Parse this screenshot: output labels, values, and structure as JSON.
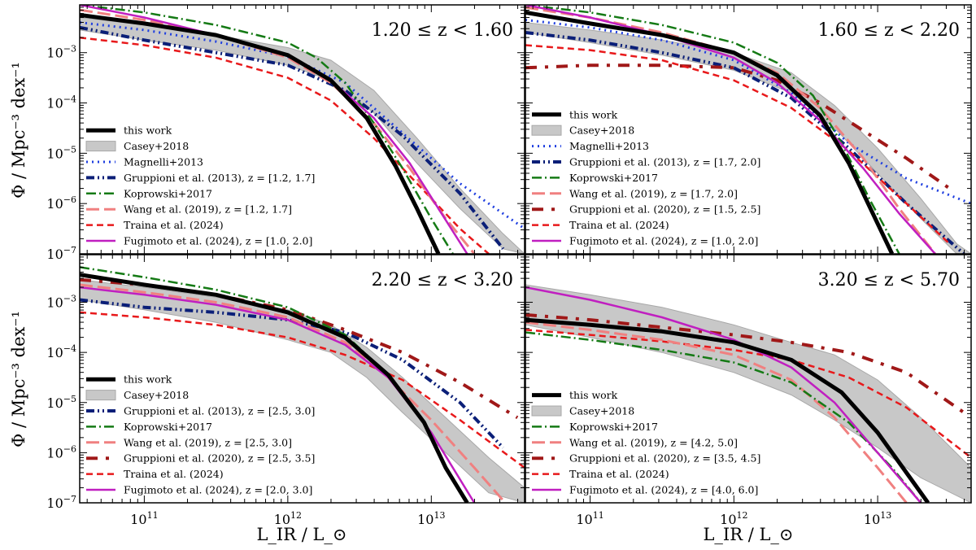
{
  "figure": {
    "ylabel": "Φ / Mpc⁻³ dex⁻¹",
    "xlabel": "L_IR / L_⊙",
    "xtick_labels": [
      "10^11",
      "10^12",
      "10^13"
    ],
    "ytick_labels": [
      "10^-7",
      "10^-6",
      "10^-5",
      "10^-4",
      "10^-3"
    ]
  },
  "styles": {
    "this work": {
      "color": "#000000",
      "dash": "",
      "width": 5
    },
    "Casey+2018": {
      "color": "#a8a8a8",
      "dash": "",
      "width": 2
    },
    "Magnelli+2013": {
      "color": "#1f3fe0",
      "dash": "2 5",
      "width": 3
    },
    "Gruppioni2013": {
      "color": "#0b1f78",
      "dash": "10 4 2 4 2 4",
      "width": 4
    },
    "Koprowski+2017": {
      "color": "#157a15",
      "dash": "12 4 2 4",
      "width": 2.5
    },
    "Wang2019": {
      "color": "#f08080",
      "dash": "16 6",
      "width": 3
    },
    "Gruppioni2020": {
      "color": "#a01818",
      "dash": "14 10 4 10",
      "width": 4
    },
    "Traina2024": {
      "color": "#e8191b",
      "dash": "8 5",
      "width": 2.5
    },
    "Fugimoto2024": {
      "color": "#c01fc0",
      "dash": "",
      "width": 2.5
    }
  },
  "chart_data": [
    {
      "type": "line",
      "title": "1.20 ≤ z < 1.60",
      "xlim_log": [
        10.55,
        13.65
      ],
      "ylim_log": [
        -7,
        -2.05
      ],
      "xscale": "log",
      "yscale": "log",
      "legend_position": "lower-left",
      "legend": [
        {
          "key": "this work",
          "label": "this work"
        },
        {
          "key": "Casey+2018",
          "label": "Casey+2018",
          "box": true
        },
        {
          "key": "Magnelli+2013",
          "label": "Magnelli+2013"
        },
        {
          "key": "Gruppioni2013",
          "label": "Gruppioni et al. (2013), z = [1.2, 1.7]"
        },
        {
          "key": "Koprowski+2017",
          "label": "Koprowski+2017"
        },
        {
          "key": "Wang2019",
          "label": "Wang et al. (2019), z = [1.2, 1.7]"
        },
        {
          "key": "Traina2024",
          "label": "Traina et al. (2024)"
        },
        {
          "key": "Fugimoto2024",
          "label": "Fugimoto et al. (2024), z = [1.0, 2.0]"
        }
      ],
      "casey_band": {
        "x": [
          10.55,
          11.0,
          11.5,
          12.0,
          12.3,
          12.6,
          12.9,
          13.2,
          13.5,
          13.65
        ],
        "upper": [
          -2.3,
          -2.45,
          -2.65,
          -2.9,
          -3.15,
          -3.75,
          -4.7,
          -5.7,
          -6.6,
          -7.0
        ],
        "lower": [
          -2.55,
          -2.75,
          -2.95,
          -3.25,
          -3.55,
          -4.2,
          -5.2,
          -6.1,
          -6.9,
          -7.0
        ]
      },
      "series": [
        {
          "key": "Magnelli+2013",
          "x": [
            10.55,
            11.0,
            11.5,
            12.0,
            12.4,
            12.8,
            13.2,
            13.65
          ],
          "y": [
            -2.4,
            -2.55,
            -2.78,
            -3.08,
            -3.6,
            -4.6,
            -5.6,
            -6.5
          ]
        },
        {
          "key": "Gruppioni2013",
          "x": [
            10.55,
            11.0,
            11.5,
            12.0,
            12.4,
            12.8,
            13.2,
            13.5
          ],
          "y": [
            -2.5,
            -2.75,
            -3.0,
            -3.25,
            -3.75,
            -4.65,
            -5.8,
            -6.9
          ]
        },
        {
          "key": "Traina2024",
          "x": [
            10.55,
            11.0,
            11.5,
            12.0,
            12.3,
            12.6,
            12.9,
            13.2,
            13.4
          ],
          "y": [
            -2.7,
            -2.85,
            -3.1,
            -3.5,
            -3.95,
            -4.7,
            -5.6,
            -6.5,
            -7.0
          ]
        },
        {
          "key": "Wang2019",
          "x": [
            10.55,
            11.0,
            11.5,
            12.0,
            12.3,
            12.6,
            12.85,
            13.1,
            13.3
          ],
          "y": [
            -2.15,
            -2.35,
            -2.65,
            -3.1,
            -3.6,
            -4.4,
            -5.3,
            -6.3,
            -7.0
          ]
        },
        {
          "key": "Koprowski+2017",
          "x": [
            10.55,
            11.0,
            11.5,
            12.0,
            12.2,
            12.4,
            12.6,
            12.8,
            13.0,
            13.15
          ],
          "y": [
            -2.05,
            -2.2,
            -2.45,
            -2.8,
            -3.1,
            -3.6,
            -4.4,
            -5.3,
            -6.3,
            -7.0
          ]
        },
        {
          "key": "Fugimoto2024",
          "x": [
            10.55,
            11.0,
            11.5,
            12.0,
            12.3,
            12.6,
            12.85,
            13.05,
            13.25
          ],
          "y": [
            -2.05,
            -2.3,
            -2.65,
            -3.05,
            -3.55,
            -4.3,
            -5.2,
            -6.1,
            -7.0
          ]
        },
        {
          "key": "this work",
          "x": [
            10.55,
            11.0,
            11.5,
            12.0,
            12.3,
            12.55,
            12.75,
            12.9,
            13.05
          ],
          "y": [
            -2.25,
            -2.42,
            -2.65,
            -3.05,
            -3.55,
            -4.3,
            -5.25,
            -6.1,
            -7.0
          ]
        }
      ]
    },
    {
      "type": "line",
      "title": "1.60 ≤ z < 2.20",
      "xlim_log": [
        10.55,
        13.65
      ],
      "ylim_log": [
        -7,
        -2.05
      ],
      "xscale": "log",
      "yscale": "log",
      "legend_position": "lower-left",
      "legend": [
        {
          "key": "this work",
          "label": "this work"
        },
        {
          "key": "Casey+2018",
          "label": "Casey+2018",
          "box": true
        },
        {
          "key": "Magnelli+2013",
          "label": "Magnelli+2013"
        },
        {
          "key": "Gruppioni2013",
          "label": "Gruppioni et al. (2013), z = [1.7, 2.0]"
        },
        {
          "key": "Koprowski+2017",
          "label": "Koprowski+2017"
        },
        {
          "key": "Wang2019",
          "label": "Wang et al. (2019), z = [1.7, 2.0]"
        },
        {
          "key": "Gruppioni2020",
          "label": "Gruppioni et al. (2020), z = [1.5, 2.5]"
        },
        {
          "key": "Traina2024",
          "label": "Traina et al. (2024)"
        },
        {
          "key": "Fugimoto2024",
          "label": "Fugimoto et al. (2024), z = [1.0, 2.0]"
        }
      ],
      "casey_band": {
        "x": [
          10.55,
          11.0,
          11.5,
          12.0,
          12.4,
          12.7,
          13.0,
          13.3,
          13.55,
          13.65
        ],
        "upper": [
          -2.4,
          -2.55,
          -2.75,
          -3.0,
          -3.4,
          -4.05,
          -4.9,
          -5.9,
          -6.8,
          -7.0
        ],
        "lower": [
          -2.6,
          -2.8,
          -3.05,
          -3.35,
          -3.8,
          -4.5,
          -5.4,
          -6.3,
          -7.0,
          -7.0
        ]
      },
      "series": [
        {
          "key": "Magnelli+2013",
          "x": [
            10.55,
            11.0,
            11.5,
            12.0,
            12.4,
            12.8,
            13.2,
            13.65
          ],
          "y": [
            -2.35,
            -2.5,
            -2.75,
            -3.15,
            -3.8,
            -4.8,
            -5.5,
            -6.0
          ]
        },
        {
          "key": "Gruppioni2013",
          "x": [
            10.55,
            11.0,
            11.5,
            12.0,
            12.4,
            12.8,
            13.2,
            13.6
          ],
          "y": [
            -2.6,
            -2.75,
            -3.0,
            -3.3,
            -3.9,
            -4.9,
            -6.0,
            -7.0
          ]
        },
        {
          "key": "Gruppioni2020",
          "x": [
            10.55,
            11.0,
            11.5,
            12.0,
            12.3,
            12.6,
            12.9,
            13.2,
            13.5
          ],
          "y": [
            -3.3,
            -3.25,
            -3.25,
            -3.3,
            -3.55,
            -4.0,
            -4.55,
            -5.1,
            -5.7
          ]
        },
        {
          "key": "Traina2024",
          "x": [
            10.55,
            11.0,
            11.5,
            12.0,
            12.4,
            12.8,
            13.2,
            13.5
          ],
          "y": [
            -2.85,
            -2.95,
            -3.15,
            -3.55,
            -4.1,
            -4.95,
            -6.0,
            -6.8
          ]
        },
        {
          "key": "Wang2019",
          "x": [
            10.55,
            11.0,
            11.5,
            12.0,
            12.3,
            12.6,
            12.9,
            13.15,
            13.4
          ],
          "y": [
            -2.1,
            -2.3,
            -2.6,
            -3.0,
            -3.4,
            -4.1,
            -5.1,
            -6.1,
            -7.0
          ]
        },
        {
          "key": "Koprowski+2017",
          "x": [
            10.55,
            11.0,
            11.5,
            12.0,
            12.3,
            12.55,
            12.75,
            12.95,
            13.15
          ],
          "y": [
            -2.05,
            -2.2,
            -2.45,
            -2.8,
            -3.2,
            -3.85,
            -4.8,
            -5.95,
            -7.0
          ]
        },
        {
          "key": "Fugimoto2024",
          "x": [
            10.55,
            11.0,
            11.5,
            12.0,
            12.3,
            12.6,
            12.9,
            13.15,
            13.4
          ],
          "y": [
            -2.05,
            -2.3,
            -2.65,
            -3.1,
            -3.6,
            -4.35,
            -5.3,
            -6.2,
            -7.0
          ]
        },
        {
          "key": "this work",
          "x": [
            10.55,
            11.0,
            11.5,
            12.0,
            12.3,
            12.6,
            12.8,
            12.95,
            13.1
          ],
          "y": [
            -2.2,
            -2.42,
            -2.65,
            -3.0,
            -3.45,
            -4.25,
            -5.2,
            -6.1,
            -7.0
          ]
        }
      ]
    },
    {
      "type": "line",
      "title": "2.20 ≤ z < 3.20",
      "xlim_log": [
        10.55,
        13.65
      ],
      "ylim_log": [
        -7,
        -2.05
      ],
      "xscale": "log",
      "yscale": "log",
      "legend_position": "lower-left",
      "legend": [
        {
          "key": "this work",
          "label": "this work"
        },
        {
          "key": "Casey+2018",
          "label": "Casey+2018",
          "box": true
        },
        {
          "key": "Gruppioni2013",
          "label": "Gruppioni et al. (2013), z = [2.5, 3.0]"
        },
        {
          "key": "Koprowski+2017",
          "label": "Koprowski+2017"
        },
        {
          "key": "Wang2019",
          "label": "Wang et al. (2019), z = [2.5, 3.0]"
        },
        {
          "key": "Gruppioni2020",
          "label": "Gruppioni et al. (2020), z = [2.5, 3.5]"
        },
        {
          "key": "Traina2024",
          "label": "Traina et al. (2024)"
        },
        {
          "key": "Fugimoto2024",
          "label": "Fugimoto et al. (2024), z = [2.0, 3.0]"
        }
      ],
      "casey_band": {
        "x": [
          10.55,
          11.0,
          11.5,
          12.0,
          12.3,
          12.55,
          12.8,
          13.1,
          13.4,
          13.65
        ],
        "upper": [
          -2.55,
          -2.7,
          -2.9,
          -3.15,
          -3.45,
          -3.9,
          -4.5,
          -5.3,
          -6.1,
          -6.7
        ],
        "lower": [
          -2.95,
          -3.15,
          -3.4,
          -3.75,
          -4.0,
          -4.5,
          -5.2,
          -6.0,
          -6.8,
          -7.0
        ]
      },
      "series": [
        {
          "key": "Gruppioni2013",
          "x": [
            10.55,
            11.0,
            11.5,
            12.0,
            12.4,
            12.8,
            13.2,
            13.5
          ],
          "y": [
            -2.95,
            -3.1,
            -3.2,
            -3.35,
            -3.6,
            -4.15,
            -5.0,
            -5.9
          ]
        },
        {
          "key": "Gruppioni2020",
          "x": [
            10.55,
            11.0,
            11.5,
            12.0,
            12.4,
            12.8,
            13.2,
            13.6
          ],
          "y": [
            -2.55,
            -2.65,
            -2.85,
            -3.15,
            -3.55,
            -4.0,
            -4.6,
            -5.3
          ]
        },
        {
          "key": "Traina2024",
          "x": [
            10.55,
            11.0,
            11.5,
            12.0,
            12.4,
            12.8,
            13.2,
            13.65
          ],
          "y": [
            -3.2,
            -3.3,
            -3.45,
            -3.7,
            -4.05,
            -4.55,
            -5.35,
            -6.3
          ]
        },
        {
          "key": "Wang2019",
          "x": [
            10.55,
            11.0,
            11.5,
            12.0,
            12.4,
            12.7,
            13.0,
            13.3,
            13.5
          ],
          "y": [
            -2.65,
            -2.8,
            -3.0,
            -3.3,
            -3.8,
            -4.5,
            -5.35,
            -6.3,
            -6.95
          ]
        },
        {
          "key": "Koprowski+2017",
          "x": [
            10.55,
            11.0,
            11.5,
            12.0,
            12.4,
            12.7,
            12.95,
            13.1,
            13.25
          ],
          "y": [
            -2.3,
            -2.5,
            -2.75,
            -3.1,
            -3.65,
            -4.45,
            -5.4,
            -6.3,
            -7.0
          ]
        },
        {
          "key": "Fugimoto2024",
          "x": [
            10.55,
            11.0,
            11.5,
            12.0,
            12.4,
            12.7,
            13.0,
            13.3
          ],
          "y": [
            -2.7,
            -2.85,
            -3.05,
            -3.35,
            -3.85,
            -4.5,
            -5.6,
            -7.0
          ]
        },
        {
          "key": "this work",
          "x": [
            10.55,
            11.0,
            11.5,
            12.0,
            12.4,
            12.7,
            12.95,
            13.1,
            13.25
          ],
          "y": [
            -2.45,
            -2.65,
            -2.85,
            -3.2,
            -3.7,
            -4.45,
            -5.4,
            -6.3,
            -7.0
          ]
        }
      ]
    },
    {
      "type": "line",
      "title": "3.20 ≤ z < 5.70",
      "xlim_log": [
        10.55,
        13.65
      ],
      "ylim_log": [
        -7,
        -2.05
      ],
      "xscale": "log",
      "yscale": "log",
      "legend_position": "lower-left",
      "legend": [
        {
          "key": "this work",
          "label": "this work"
        },
        {
          "key": "Casey+2018",
          "label": "Casey+2018",
          "box": true
        },
        {
          "key": "Koprowski+2017",
          "label": "Koprowski+2017"
        },
        {
          "key": "Wang2019",
          "label": "Wang et al. (2019), z = [4.2, 5.0]"
        },
        {
          "key": "Gruppioni2020",
          "label": "Gruppioni et al. (2020), z = [3.5, 4.5]"
        },
        {
          "key": "Traina2024",
          "label": "Traina et al. (2024)"
        },
        {
          "key": "Fugimoto2024",
          "label": "Fugimoto et al. (2024), z = [4.0, 6.0]"
        }
      ],
      "casey_band": {
        "x": [
          10.55,
          11.0,
          11.5,
          12.0,
          12.4,
          12.7,
          13.0,
          13.3,
          13.65
        ],
        "upper": [
          -2.65,
          -2.85,
          -3.1,
          -3.45,
          -3.8,
          -4.05,
          -4.55,
          -5.3,
          -6.3
        ],
        "lower": [
          -3.45,
          -3.7,
          -4.0,
          -4.4,
          -4.85,
          -5.35,
          -5.9,
          -6.5,
          -7.0
        ]
      },
      "series": [
        {
          "key": "Gruppioni2020",
          "x": [
            10.55,
            11.0,
            11.5,
            12.0,
            12.4,
            12.8,
            13.2,
            13.6
          ],
          "y": [
            -3.25,
            -3.35,
            -3.5,
            -3.65,
            -3.8,
            -4.0,
            -4.4,
            -5.2
          ]
        },
        {
          "key": "Traina2024",
          "x": [
            10.55,
            11.0,
            11.5,
            12.0,
            12.4,
            12.8,
            13.2,
            13.65
          ],
          "y": [
            -3.55,
            -3.65,
            -3.78,
            -3.95,
            -4.15,
            -4.5,
            -5.1,
            -6.1
          ]
        },
        {
          "key": "Wang2019",
          "x": [
            10.55,
            11.0,
            11.5,
            12.0,
            12.4,
            12.7,
            13.0,
            13.2
          ],
          "y": [
            -3.4,
            -3.55,
            -3.75,
            -4.05,
            -4.55,
            -5.3,
            -6.3,
            -7.0
          ]
        },
        {
          "key": "Koprowski+2017",
          "x": [
            10.55,
            11.0,
            11.5,
            12.0,
            12.4,
            12.8,
            13.1,
            13.3
          ],
          "y": [
            -3.6,
            -3.75,
            -3.95,
            -4.2,
            -4.6,
            -5.4,
            -6.3,
            -7.0
          ]
        },
        {
          "key": "Fugimoto2024",
          "x": [
            10.55,
            11.0,
            11.5,
            12.0,
            12.4,
            12.7,
            13.0,
            13.3
          ],
          "y": [
            -2.7,
            -2.95,
            -3.3,
            -3.75,
            -4.3,
            -5.0,
            -6.0,
            -7.0
          ]
        },
        {
          "key": "this work",
          "x": [
            10.55,
            11.0,
            11.5,
            12.0,
            12.4,
            12.75,
            13.0,
            13.2,
            13.35
          ],
          "y": [
            -3.35,
            -3.45,
            -3.58,
            -3.8,
            -4.15,
            -4.8,
            -5.6,
            -6.4,
            -7.0
          ]
        }
      ]
    }
  ]
}
